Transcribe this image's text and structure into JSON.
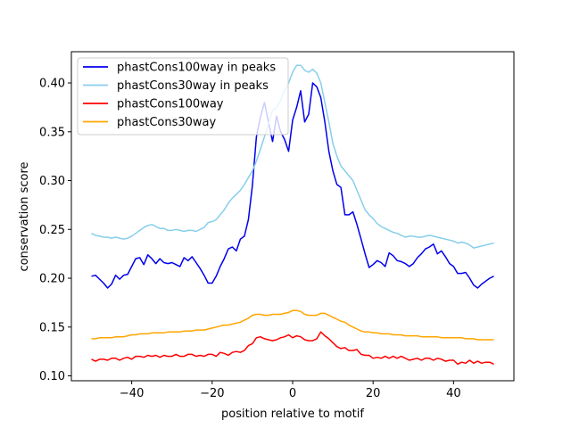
{
  "chart_data": {
    "type": "line",
    "title": "",
    "xlabel": "position relative to motif",
    "ylabel": "conservation score",
    "xlim": [
      -55,
      55
    ],
    "ylim": [
      0.095,
      0.432
    ],
    "xticks": [
      -40,
      -20,
      0,
      20,
      40
    ],
    "yticks": [
      0.1,
      0.15,
      0.2,
      0.25,
      0.3,
      0.35,
      0.4
    ],
    "xtick_labels": [
      "−40",
      "−20",
      "0",
      "20",
      "40"
    ],
    "ytick_labels": [
      "0.10",
      "0.15",
      "0.20",
      "0.25",
      "0.30",
      "0.35",
      "0.40"
    ],
    "grid": false,
    "legend_position": "top-left",
    "x": [
      -50,
      -49,
      -48,
      -47,
      -46,
      -45,
      -44,
      -43,
      -42,
      -41,
      -40,
      -39,
      -38,
      -37,
      -36,
      -35,
      -34,
      -33,
      -32,
      -31,
      -30,
      -29,
      -28,
      -27,
      -26,
      -25,
      -24,
      -23,
      -22,
      -21,
      -20,
      -19,
      -18,
      -17,
      -16,
      -15,
      -14,
      -13,
      -12,
      -11,
      -10,
      -9,
      -8,
      -7,
      -6,
      -5,
      -4,
      -3,
      -2,
      -1,
      0,
      1,
      2,
      3,
      4,
      5,
      6,
      7,
      8,
      9,
      10,
      11,
      12,
      13,
      14,
      15,
      16,
      17,
      18,
      19,
      20,
      21,
      22,
      23,
      24,
      25,
      26,
      27,
      28,
      29,
      30,
      31,
      32,
      33,
      34,
      35,
      36,
      37,
      38,
      39,
      40,
      41,
      42,
      43,
      44,
      45,
      46,
      47,
      48,
      49,
      50
    ],
    "series": [
      {
        "name": "phastCons100way in peaks",
        "color": "#0000ee",
        "values": [
          0.202,
          0.203,
          0.199,
          0.195,
          0.19,
          0.194,
          0.203,
          0.199,
          0.203,
          0.204,
          0.212,
          0.22,
          0.221,
          0.214,
          0.224,
          0.22,
          0.215,
          0.22,
          0.216,
          0.215,
          0.216,
          0.214,
          0.212,
          0.221,
          0.218,
          0.222,
          0.216,
          0.21,
          0.203,
          0.195,
          0.195,
          0.202,
          0.212,
          0.22,
          0.23,
          0.232,
          0.228,
          0.24,
          0.243,
          0.26,
          0.295,
          0.345,
          0.365,
          0.38,
          0.36,
          0.34,
          0.366,
          0.35,
          0.342,
          0.33,
          0.362,
          0.375,
          0.392,
          0.36,
          0.368,
          0.4,
          0.396,
          0.385,
          0.36,
          0.33,
          0.31,
          0.296,
          0.293,
          0.265,
          0.265,
          0.268,
          0.255,
          0.24,
          0.225,
          0.211,
          0.214,
          0.218,
          0.216,
          0.212,
          0.226,
          0.223,
          0.218,
          0.217,
          0.215,
          0.212,
          0.215,
          0.221,
          0.225,
          0.23,
          0.232,
          0.235,
          0.225,
          0.228,
          0.222,
          0.215,
          0.212,
          0.205,
          0.205,
          0.206,
          0.2,
          0.193,
          0.19,
          0.194,
          0.197,
          0.2,
          0.202
        ]
      },
      {
        "name": "phastCons30way in peaks",
        "color": "#87ceeb",
        "values": [
          0.246,
          0.244,
          0.243,
          0.242,
          0.242,
          0.241,
          0.242,
          0.241,
          0.24,
          0.241,
          0.243,
          0.246,
          0.249,
          0.252,
          0.254,
          0.255,
          0.253,
          0.251,
          0.251,
          0.249,
          0.249,
          0.25,
          0.249,
          0.248,
          0.249,
          0.249,
          0.248,
          0.25,
          0.252,
          0.257,
          0.258,
          0.26,
          0.265,
          0.27,
          0.277,
          0.282,
          0.286,
          0.29,
          0.296,
          0.303,
          0.31,
          0.32,
          0.332,
          0.345,
          0.358,
          0.372,
          0.375,
          0.382,
          0.392,
          0.4,
          0.411,
          0.418,
          0.418,
          0.413,
          0.411,
          0.414,
          0.41,
          0.4,
          0.38,
          0.36,
          0.338,
          0.325,
          0.315,
          0.31,
          0.305,
          0.3,
          0.29,
          0.28,
          0.27,
          0.265,
          0.261,
          0.256,
          0.253,
          0.251,
          0.249,
          0.247,
          0.246,
          0.244,
          0.242,
          0.243,
          0.243,
          0.242,
          0.242,
          0.243,
          0.244,
          0.243,
          0.242,
          0.241,
          0.24,
          0.239,
          0.238,
          0.236,
          0.237,
          0.236,
          0.234,
          0.231,
          0.232,
          0.233,
          0.234,
          0.235,
          0.236
        ]
      },
      {
        "name": "phastCons100way",
        "color": "#ff0000",
        "values": [
          0.117,
          0.115,
          0.117,
          0.117,
          0.116,
          0.118,
          0.118,
          0.116,
          0.118,
          0.119,
          0.117,
          0.12,
          0.12,
          0.119,
          0.121,
          0.12,
          0.121,
          0.119,
          0.121,
          0.12,
          0.12,
          0.122,
          0.12,
          0.12,
          0.122,
          0.122,
          0.12,
          0.121,
          0.12,
          0.122,
          0.122,
          0.12,
          0.124,
          0.123,
          0.121,
          0.124,
          0.125,
          0.124,
          0.126,
          0.131,
          0.133,
          0.139,
          0.14,
          0.138,
          0.137,
          0.136,
          0.137,
          0.139,
          0.14,
          0.142,
          0.139,
          0.141,
          0.14,
          0.137,
          0.136,
          0.136,
          0.138,
          0.145,
          0.141,
          0.138,
          0.134,
          0.13,
          0.128,
          0.129,
          0.126,
          0.126,
          0.127,
          0.122,
          0.121,
          0.121,
          0.118,
          0.119,
          0.118,
          0.12,
          0.118,
          0.12,
          0.118,
          0.12,
          0.118,
          0.116,
          0.117,
          0.118,
          0.116,
          0.118,
          0.118,
          0.116,
          0.118,
          0.117,
          0.115,
          0.116,
          0.116,
          0.112,
          0.114,
          0.113,
          0.116,
          0.113,
          0.115,
          0.113,
          0.114,
          0.114,
          0.112
        ]
      },
      {
        "name": "phastCons30way",
        "color": "#ffa500",
        "values": [
          0.138,
          0.138,
          0.139,
          0.139,
          0.139,
          0.139,
          0.14,
          0.14,
          0.14,
          0.141,
          0.142,
          0.142,
          0.143,
          0.143,
          0.143,
          0.144,
          0.144,
          0.144,
          0.144,
          0.145,
          0.145,
          0.145,
          0.145,
          0.146,
          0.146,
          0.146,
          0.147,
          0.147,
          0.147,
          0.148,
          0.149,
          0.15,
          0.151,
          0.152,
          0.152,
          0.153,
          0.154,
          0.155,
          0.157,
          0.159,
          0.162,
          0.163,
          0.163,
          0.162,
          0.162,
          0.163,
          0.163,
          0.163,
          0.164,
          0.165,
          0.167,
          0.167,
          0.166,
          0.163,
          0.162,
          0.162,
          0.162,
          0.164,
          0.164,
          0.162,
          0.16,
          0.158,
          0.156,
          0.155,
          0.152,
          0.15,
          0.148,
          0.146,
          0.145,
          0.145,
          0.144,
          0.144,
          0.143,
          0.143,
          0.143,
          0.142,
          0.142,
          0.142,
          0.141,
          0.141,
          0.141,
          0.141,
          0.14,
          0.14,
          0.14,
          0.14,
          0.14,
          0.139,
          0.139,
          0.139,
          0.139,
          0.139,
          0.139,
          0.138,
          0.138,
          0.138,
          0.137,
          0.137,
          0.137,
          0.137,
          0.137
        ]
      }
    ]
  }
}
